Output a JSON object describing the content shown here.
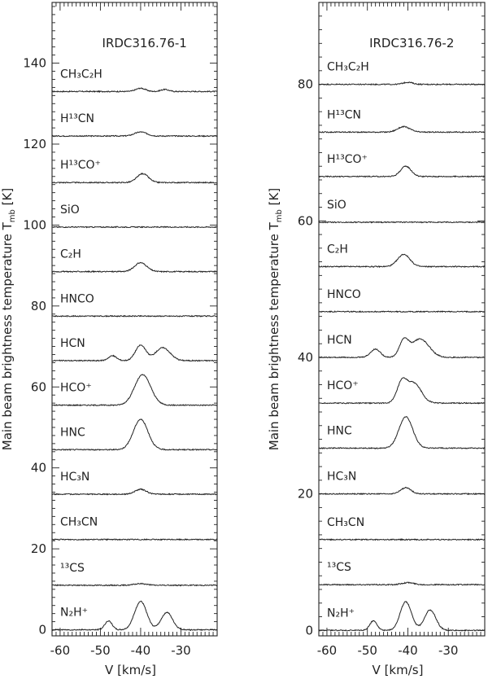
{
  "chart_data": [
    {
      "type": "line",
      "title": "IRDC316.76-1",
      "xlabel": "V [km/s]",
      "ylabel": "Main beam brightness temperature T_mb [K]",
      "ylabel_main": "Main beam brightness temperature T",
      "ylabel_sub": "mb",
      "ylabel_unit": "[K]",
      "xlim": [
        -62,
        -21
      ],
      "ylim": [
        -1.5,
        155
      ],
      "xticks": [
        -60,
        -50,
        -40,
        -30
      ],
      "yticks": [
        0,
        20,
        40,
        60,
        80,
        100,
        120,
        140
      ],
      "series": [
        {
          "name": "CH3C2H",
          "label": "CH₃C₂H",
          "baseline": 133,
          "lines": [
            {
              "center": -40,
              "amp": 0.8,
              "width": 1.2
            },
            {
              "center": -34,
              "amp": 0.5,
              "width": 1.0
            }
          ]
        },
        {
          "name": "H13CN",
          "label": "H¹³CN",
          "baseline": 122,
          "lines": [
            {
              "center": -40,
              "amp": 1.0,
              "width": 1.5
            }
          ]
        },
        {
          "name": "H13CO+",
          "label": "H¹³CO⁺",
          "baseline": 110.5,
          "lines": [
            {
              "center": -39.5,
              "amp": 2.2,
              "width": 1.4
            }
          ]
        },
        {
          "name": "SiO",
          "label": "SiO",
          "baseline": 99.5,
          "lines": []
        },
        {
          "name": "C2H",
          "label": "C₂H",
          "baseline": 88.5,
          "lines": [
            {
              "center": -40,
              "amp": 2.2,
              "width": 1.5
            }
          ]
        },
        {
          "name": "HNCO",
          "label": "HNCO",
          "baseline": 77.5,
          "lines": []
        },
        {
          "name": "HCN",
          "label": "HCN",
          "baseline": 66.5,
          "lines": [
            {
              "center": -47,
              "amp": 1.2,
              "width": 1.0
            },
            {
              "center": -40,
              "amp": 3.8,
              "width": 1.3
            },
            {
              "center": -34.5,
              "amp": 3.2,
              "width": 1.8
            }
          ]
        },
        {
          "name": "HCO+",
          "label": "HCO⁺",
          "baseline": 55.5,
          "lines": [
            {
              "center": -39.5,
              "amp": 7.5,
              "width": 2.0
            }
          ]
        },
        {
          "name": "HNC",
          "label": "HNC",
          "baseline": 44.5,
          "lines": [
            {
              "center": -40,
              "amp": 7.5,
              "width": 1.8
            }
          ]
        },
        {
          "name": "HC3N",
          "label": "HC₃N",
          "baseline": 33.5,
          "lines": [
            {
              "center": -40,
              "amp": 1.2,
              "width": 1.4
            }
          ]
        },
        {
          "name": "CH3CN",
          "label": "CH₃CN",
          "baseline": 22.3,
          "lines": []
        },
        {
          "name": "13CS",
          "label": "¹³CS",
          "baseline": 11,
          "lines": [
            {
              "center": -40,
              "amp": 0.4,
              "width": 1.5
            }
          ]
        },
        {
          "name": "N2H+",
          "label": "N₂H⁺",
          "baseline": 0,
          "lines": [
            {
              "center": -48,
              "amp": 2.2,
              "width": 0.9
            },
            {
              "center": -40,
              "amp": 7.0,
              "width": 1.5
            },
            {
              "center": -33.5,
              "amp": 4.3,
              "width": 1.4
            }
          ]
        }
      ]
    },
    {
      "type": "line",
      "title": "IRDC316.76-2",
      "xlabel": "V [km/s]",
      "ylabel": "Main beam brightness temperature T_mb [K]",
      "ylabel_main": "Main beam brightness temperature T",
      "ylabel_sub": "mb",
      "ylabel_unit": "[K]",
      "xlim": [
        -62,
        -21
      ],
      "ylim": [
        -0.8,
        92
      ],
      "xticks": [
        -60,
        -50,
        -40,
        -30
      ],
      "yticks": [
        0,
        20,
        40,
        60,
        80
      ],
      "series": [
        {
          "name": "CH3C2H",
          "label": "CH₃C₂H",
          "baseline": 80,
          "lines": [
            {
              "center": -40,
              "amp": 0.3,
              "width": 1.2
            }
          ]
        },
        {
          "name": "H13CN",
          "label": "H¹³CN",
          "baseline": 73,
          "lines": [
            {
              "center": -41,
              "amp": 0.8,
              "width": 1.5
            }
          ]
        },
        {
          "name": "H13CO+",
          "label": "H¹³CO⁺",
          "baseline": 66.5,
          "lines": [
            {
              "center": -40.5,
              "amp": 1.5,
              "width": 1.3
            }
          ]
        },
        {
          "name": "SiO",
          "label": "SiO",
          "baseline": 59.8,
          "lines": []
        },
        {
          "name": "C2H",
          "label": "C₂H",
          "baseline": 53.3,
          "lines": [
            {
              "center": -41,
              "amp": 1.8,
              "width": 1.5
            }
          ]
        },
        {
          "name": "HNCO",
          "label": "HNCO",
          "baseline": 46.7,
          "lines": []
        },
        {
          "name": "HCN",
          "label": "HCN",
          "baseline": 40,
          "lines": [
            {
              "center": -48,
              "amp": 1.2,
              "width": 1.2
            },
            {
              "center": -41,
              "amp": 2.3,
              "width": 1.1
            },
            {
              "center": -37,
              "amp": 2.7,
              "width": 2.2
            }
          ]
        },
        {
          "name": "HCO+",
          "label": "HCO⁺",
          "baseline": 33.3,
          "lines": [
            {
              "center": -41.5,
              "amp": 2.8,
              "width": 1.2
            },
            {
              "center": -38.5,
              "amp": 2.9,
              "width": 1.8
            }
          ]
        },
        {
          "name": "HNC",
          "label": "HNC",
          "baseline": 26.7,
          "lines": [
            {
              "center": -40.5,
              "amp": 4.6,
              "width": 1.7
            }
          ]
        },
        {
          "name": "HC3N",
          "label": "HC₃N",
          "baseline": 20,
          "lines": [
            {
              "center": -40.5,
              "amp": 0.9,
              "width": 1.3
            }
          ]
        },
        {
          "name": "CH3CN",
          "label": "CH₃CN",
          "baseline": 13.3,
          "lines": []
        },
        {
          "name": "13CS",
          "label": "¹³CS",
          "baseline": 6.7,
          "lines": [
            {
              "center": -40,
              "amp": 0.3,
              "width": 1.4
            }
          ]
        },
        {
          "name": "N2H+",
          "label": "N₂H⁺",
          "baseline": 0,
          "lines": [
            {
              "center": -48.5,
              "amp": 1.4,
              "width": 0.9
            },
            {
              "center": -40.5,
              "amp": 4.2,
              "width": 1.4
            },
            {
              "center": -34.5,
              "amp": 3.0,
              "width": 1.4
            }
          ]
        }
      ]
    }
  ]
}
